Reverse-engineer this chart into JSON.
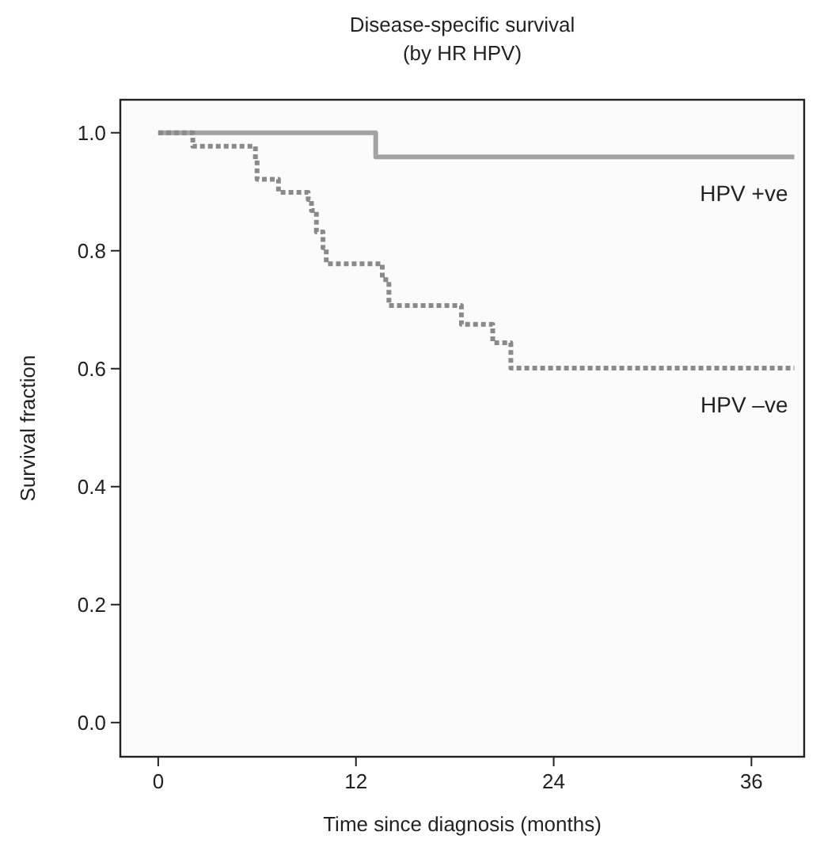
{
  "chart_data": {
    "type": "step",
    "title": "Disease-specific survival",
    "subtitle": "(by HR HPV)",
    "xlabel": "Time since diagnosis (months)",
    "ylabel": "Survival fraction",
    "xlim": [
      -2.3,
      39.2
    ],
    "xticks": [
      0,
      12,
      24,
      36
    ],
    "ylim": [
      -0.058,
      1.056
    ],
    "yticks": [
      {
        "value": 0,
        "label": "0.0"
      },
      0.2,
      0.4,
      0.6,
      0.8,
      {
        "value": 1,
        "label": "1.0"
      }
    ],
    "series": [
      {
        "name": "HPV +ve",
        "color": "#a3a3a3",
        "line_style": "solid",
        "x": [
          0,
          13.2,
          38.6
        ],
        "values": [
          1.0,
          0.959,
          0.959
        ]
      },
      {
        "name": "HPV –ve",
        "color": "#8a8a8a",
        "line_style": "dotted",
        "x": [
          0,
          2.1,
          5.9,
          6.0,
          7.3,
          9.1,
          9.3,
          9.6,
          10.0,
          10.2,
          13.6,
          14.0,
          18.4,
          20.3,
          21.4,
          38.6
        ],
        "values": [
          1.0,
          0.977,
          0.953,
          0.921,
          0.899,
          0.887,
          0.868,
          0.832,
          0.805,
          0.778,
          0.751,
          0.707,
          0.675,
          0.644,
          0.601,
          0.601
        ]
      }
    ]
  }
}
